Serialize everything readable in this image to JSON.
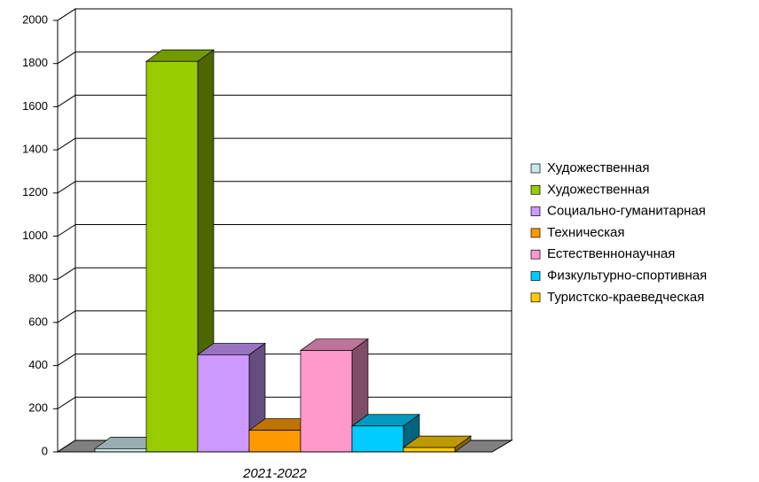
{
  "chart_data": {
    "type": "bar3d",
    "categories": [
      "2021-2022"
    ],
    "series": [
      {
        "name": "Художественная",
        "color": "#cce8e8",
        "values": [
          15
        ]
      },
      {
        "name": "Художественная",
        "color": "#99cc00",
        "values": [
          1810
        ]
      },
      {
        "name": "Социально-гуманитарная",
        "color": "#cc99ff",
        "values": [
          450
        ]
      },
      {
        "name": "Техническая",
        "color": "#ff9900",
        "values": [
          100
        ]
      },
      {
        "name": "Естественнонаучная",
        "color": "#ff99cc",
        "values": [
          470
        ]
      },
      {
        "name": "Физкультурно-спортивная",
        "color": "#00ccff",
        "values": [
          120
        ]
      },
      {
        "name": "Туристско-краеведческая",
        "color": "#ffcc00",
        "values": [
          20
        ]
      }
    ],
    "ylim": [
      0,
      2000
    ],
    "yticks": [
      0,
      200,
      400,
      600,
      800,
      1000,
      1200,
      1400,
      1600,
      1800,
      2000
    ],
    "grid": true,
    "legend": "right"
  }
}
